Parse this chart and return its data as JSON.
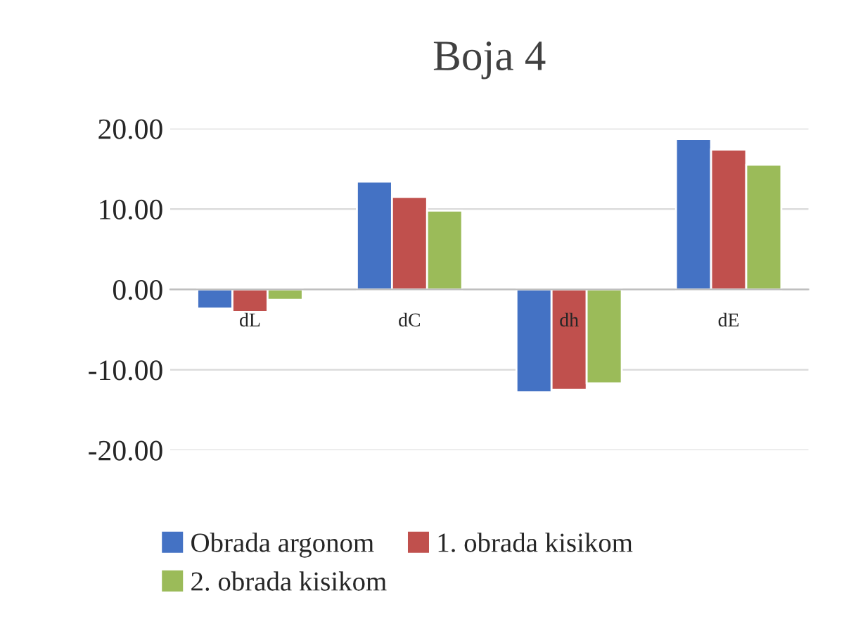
{
  "chart_data": {
    "type": "bar",
    "title": "Boja 4",
    "categories": [
      "dL",
      "dC",
      "dh",
      "dE"
    ],
    "series": [
      {
        "name": "Obrada argonom",
        "color": "#4472c4",
        "values": [
          -2.4,
          13.4,
          -12.8,
          18.7
        ]
      },
      {
        "name": "1. obrada kisikom",
        "color": "#c0504d",
        "values": [
          -2.8,
          11.5,
          -12.5,
          17.4
        ]
      },
      {
        "name": "2. obrada kisikom",
        "color": "#9bbb59",
        "values": [
          -1.3,
          9.8,
          -11.7,
          15.5
        ]
      }
    ],
    "ylim": [
      -20,
      20
    ],
    "yticks": [
      {
        "value": -20,
        "label": "-20.00"
      },
      {
        "value": -10,
        "label": "-10.00"
      },
      {
        "value": 0,
        "label": "0.00"
      },
      {
        "value": 10,
        "label": "10.00"
      },
      {
        "value": 20,
        "label": "20.00"
      }
    ],
    "grid": "y",
    "legend": "bottom"
  }
}
